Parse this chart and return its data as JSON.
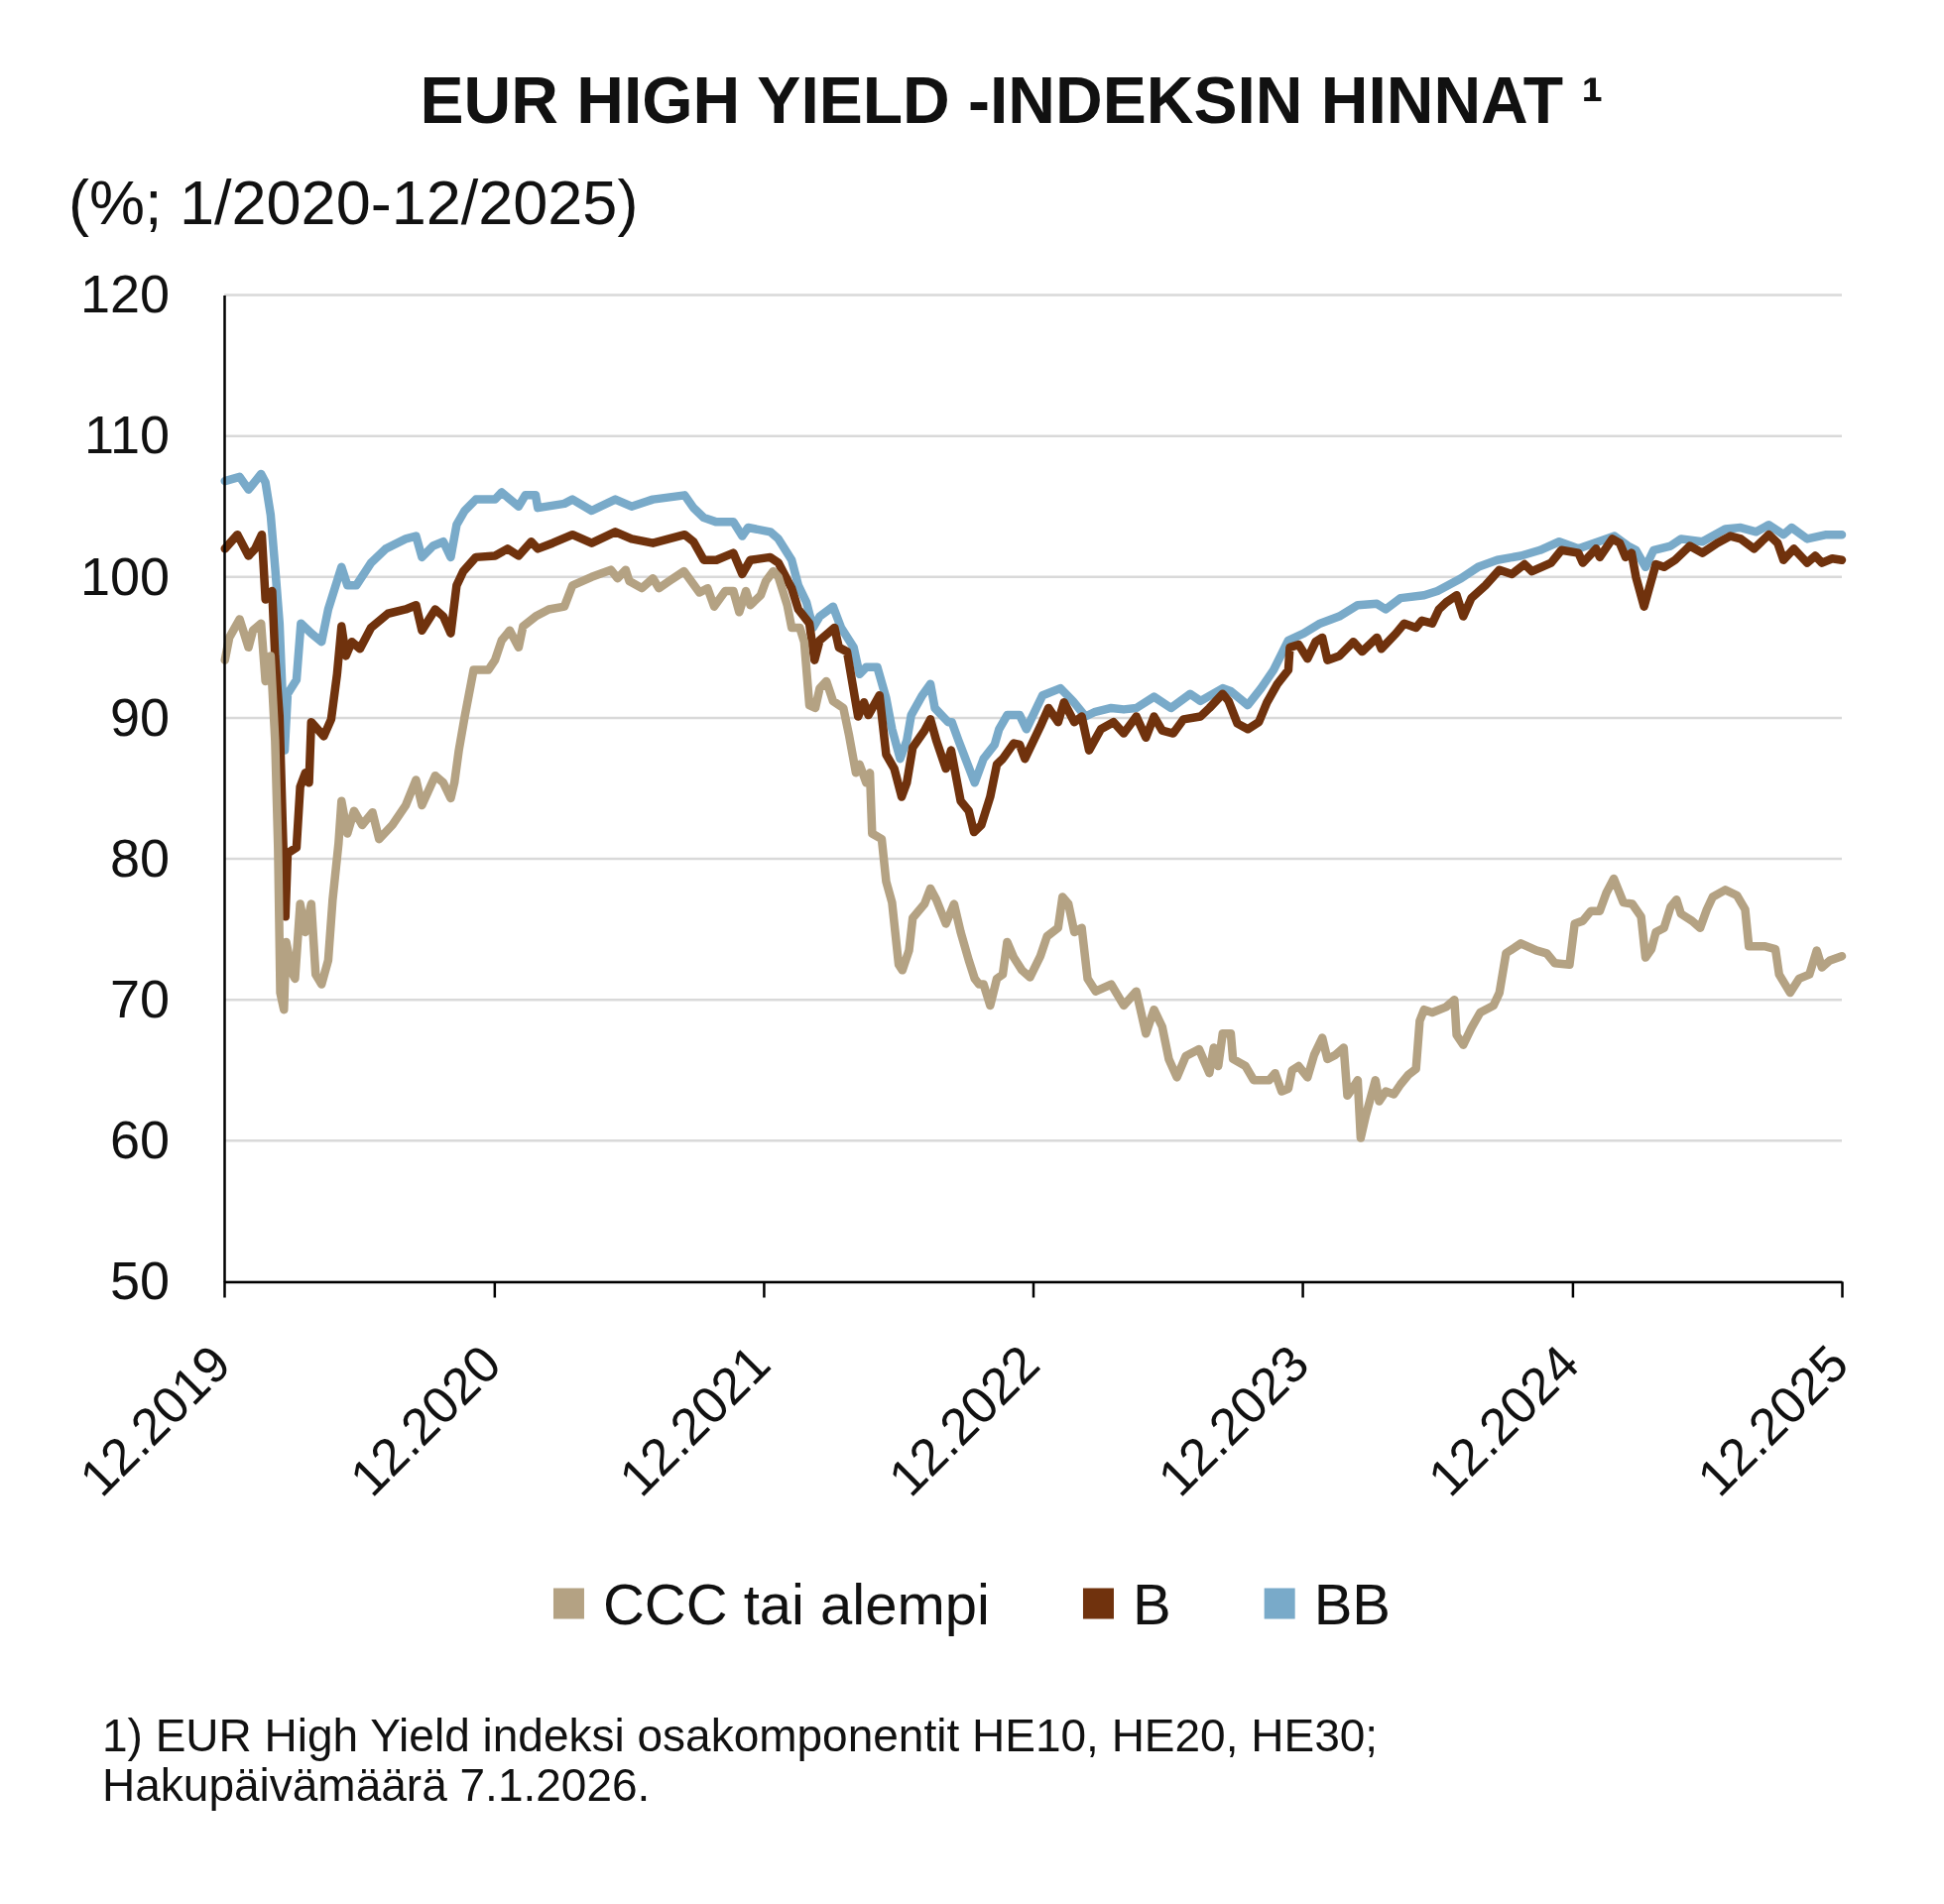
{
  "chart_data": {
    "type": "line",
    "title": "EUR HIGH YIELD -INDEKSIN HINNAT ¹",
    "subtitle": "(%; 1/2020-12/2025)",
    "annotations": [
      "1) EUR High Yield indeksi osakomponentit HE10, HE20, HE30;",
      "Hakupäivämäärä 7.1.2026."
    ],
    "xlim": [
      "2019-12-31",
      "2025-12-31"
    ],
    "xticks": [
      {
        "value": "2019-12-31",
        "label": "12.2019"
      },
      {
        "value": "2020-12-31",
        "label": "12.2020"
      },
      {
        "value": "2021-12-31",
        "label": "12.2021"
      },
      {
        "value": "2022-12-31",
        "label": "12.2022"
      },
      {
        "value": "2023-12-31",
        "label": "12.2023"
      },
      {
        "value": "2024-12-31",
        "label": "12.2024"
      },
      {
        "value": "2025-12-31",
        "label": "12.2025"
      }
    ],
    "ylim": [
      50,
      120
    ],
    "yticks": [
      50,
      60,
      70,
      80,
      90,
      100,
      110,
      120
    ],
    "grid": "y",
    "legend": "bottom",
    "series": [
      {
        "name": "CCC tai alempi",
        "color": "#b4a283",
        "x": [
          "2020-01-01",
          "2020-01-07",
          "2020-01-21",
          "2020-02-02",
          "2020-02-08",
          "2020-02-19",
          "2020-02-25",
          "2020-03-03",
          "2020-03-09",
          "2020-03-13",
          "2020-03-16",
          "2020-03-21",
          "2020-03-24",
          "2020-04-02",
          "2020-04-05",
          "2020-04-12",
          "2020-04-19",
          "2020-04-27",
          "2020-05-03",
          "2020-05-11",
          "2020-05-20",
          "2020-05-26",
          "2020-06-03",
          "2020-06-07",
          "2020-06-15",
          "2020-06-24",
          "2020-07-05",
          "2020-07-19",
          "2020-07-28",
          "2020-08-15",
          "2020-09-02",
          "2020-09-16",
          "2020-09-24",
          "2020-10-12",
          "2020-10-23",
          "2020-11-02",
          "2020-11-07",
          "2020-11-13",
          "2020-11-21",
          "2020-12-03",
          "2020-12-23",
          "2021-01-01",
          "2021-01-10",
          "2021-01-21",
          "2021-02-02",
          "2021-02-08",
          "2021-02-25",
          "2021-03-15",
          "2021-04-05",
          "2021-04-16",
          "2021-05-12",
          "2021-06-07",
          "2021-06-16",
          "2021-06-27",
          "2021-07-02",
          "2021-07-19",
          "2021-08-03",
          "2021-08-11",
          "2021-08-25",
          "2021-09-14",
          "2021-10-05",
          "2021-10-16",
          "2021-10-25",
          "2021-11-09",
          "2021-11-20",
          "2021-11-28",
          "2021-12-07",
          "2021-12-13",
          "2021-12-27",
          "2022-01-03",
          "2022-01-13",
          "2022-01-20",
          "2022-02-01",
          "2022-02-07",
          "2022-02-18",
          "2022-02-24",
          "2022-03-03",
          "2022-03-11",
          "2022-03-17",
          "2022-03-26",
          "2022-04-04",
          "2022-04-18",
          "2022-04-26",
          "2022-05-05",
          "2022-05-10",
          "2022-05-19",
          "2022-05-24",
          "2022-05-27",
          "2022-06-09",
          "2022-06-15",
          "2022-06-23",
          "2022-07-02",
          "2022-07-07",
          "2022-07-16",
          "2022-07-21",
          "2022-08-06",
          "2022-08-14",
          "2022-08-22",
          "2022-09-04",
          "2022-09-15",
          "2022-09-24",
          "2022-10-05",
          "2022-10-13",
          "2022-10-19",
          "2022-10-25",
          "2022-11-03",
          "2022-11-12",
          "2022-11-20",
          "2022-11-26",
          "2022-12-05",
          "2022-12-16",
          "2022-12-27",
          "2023-01-10",
          "2023-01-19",
          "2023-02-03",
          "2023-02-09",
          "2023-02-17",
          "2023-02-25",
          "2023-03-07",
          "2023-03-15",
          "2023-03-26",
          "2023-04-16",
          "2023-05-03",
          "2023-05-20",
          "2023-06-02",
          "2023-06-13",
          "2023-06-24",
          "2023-07-03",
          "2023-07-14",
          "2023-07-26",
          "2023-08-13",
          "2023-08-27",
          "2023-09-02",
          "2023-09-08",
          "2023-09-14",
          "2023-09-25",
          "2023-09-28",
          "2023-10-15",
          "2023-10-26",
          "2023-11-16",
          "2023-11-24",
          "2023-12-03",
          "2023-12-12",
          "2023-12-17",
          "2023-12-26",
          "2024-01-07",
          "2024-01-16",
          "2024-01-27",
          "2024-02-03",
          "2024-02-14",
          "2024-02-25",
          "2024-03-01",
          "2024-03-09",
          "2024-03-15",
          "2024-03-19",
          "2024-03-26",
          "2024-04-08",
          "2024-04-13",
          "2024-04-22",
          "2024-05-03",
          "2024-05-12",
          "2024-05-23",
          "2024-06-02",
          "2024-06-07",
          "2024-06-13",
          "2024-06-24",
          "2024-07-13",
          "2024-07-24",
          "2024-07-27",
          "2024-08-05",
          "2024-08-16",
          "2024-08-28",
          "2024-09-15",
          "2024-09-23",
          "2024-10-02",
          "2024-10-22",
          "2024-11-12",
          "2024-11-26",
          "2024-12-07",
          "2024-12-27",
          "2025-01-03",
          "2025-01-14",
          "2025-01-25",
          "2025-02-06",
          "2025-02-15",
          "2025-02-25",
          "2025-03-10",
          "2025-03-22",
          "2025-04-03",
          "2025-04-09",
          "2025-04-17",
          "2025-04-23",
          "2025-05-04",
          "2025-05-13",
          "2025-05-21",
          "2025-05-27",
          "2025-06-11",
          "2025-06-22",
          "2025-07-01",
          "2025-07-09",
          "2025-07-26",
          "2025-08-11",
          "2025-08-22",
          "2025-08-27",
          "2025-09-17",
          "2025-10-02",
          "2025-10-07",
          "2025-10-22",
          "2025-11-03",
          "2025-11-17",
          "2025-11-27",
          "2025-12-04",
          "2025-12-15",
          "2025-12-31"
        ],
        "values": [
          94.1,
          95.7,
          97.0,
          95.0,
          96.2,
          96.7,
          92.6,
          94.4,
          88.4,
          80.8,
          70.5,
          69.3,
          74.1,
          71.8,
          71.5,
          76.8,
          74.8,
          76.8,
          71.8,
          71.1,
          72.8,
          77.1,
          81.1,
          84.1,
          81.8,
          83.4,
          82.4,
          83.3,
          81.4,
          82.4,
          83.8,
          85.6,
          83.8,
          85.9,
          85.4,
          84.3,
          85.4,
          87.7,
          90.1,
          93.4,
          93.4,
          94.1,
          95.5,
          96.2,
          95.0,
          96.5,
          97.2,
          97.7,
          97.9,
          99.4,
          100.0,
          100.5,
          99.9,
          100.5,
          99.7,
          99.2,
          99.9,
          99.2,
          99.7,
          100.4,
          98.9,
          99.2,
          97.9,
          99.0,
          99.0,
          97.5,
          99.0,
          98.0,
          98.7,
          99.7,
          100.4,
          100.0,
          98.0,
          96.4,
          96.4,
          95.4,
          90.9,
          90.7,
          92.1,
          92.6,
          91.2,
          90.7,
          88.7,
          86.1,
          86.7,
          85.4,
          86.1,
          81.8,
          81.4,
          78.4,
          76.9,
          72.5,
          72.1,
          73.5,
          75.8,
          76.8,
          77.9,
          77.1,
          75.4,
          76.8,
          74.8,
          72.8,
          71.5,
          71.1,
          71.1,
          69.6,
          71.5,
          71.8,
          74.1,
          73.0,
          72.1,
          71.6,
          73.1,
          74.5,
          75.1,
          77.3,
          76.8,
          74.8,
          75.1,
          71.5,
          70.6,
          71.1,
          69.6,
          70.6,
          67.6,
          69.3,
          68.1,
          65.8,
          64.5,
          66.0,
          66.5,
          64.8,
          66.6,
          65.3,
          67.6,
          67.6,
          65.8,
          65.3,
          64.3,
          64.3,
          64.8,
          63.5,
          63.7,
          65.0,
          65.3,
          64.5,
          66.1,
          67.3,
          65.8,
          66.1,
          66.6,
          63.2,
          63.8,
          64.3,
          60.2,
          61.8,
          64.3,
          62.8,
          63.5,
          63.3,
          64.0,
          64.7,
          65.1,
          68.5,
          69.3,
          69.1,
          69.5,
          70.0,
          67.5,
          66.8,
          68.0,
          69.1,
          69.6,
          70.5,
          73.3,
          74.0,
          73.5,
          73.3,
          72.6,
          72.5,
          75.4,
          75.6,
          76.3,
          76.3,
          77.6,
          78.6,
          76.9,
          76.8,
          75.9,
          73.0,
          73.6,
          74.8,
          75.1,
          76.6,
          77.1,
          76.1,
          75.6,
          75.1,
          76.4,
          77.3,
          77.8,
          77.4,
          76.4,
          73.8,
          73.8,
          73.6,
          71.8,
          70.5,
          71.5,
          71.8,
          73.5,
          72.3,
          72.8,
          73.1
        ]
      },
      {
        "name": "B",
        "color": "#70320d",
        "x": [
          "2020-01-01",
          "2020-01-18",
          "2020-02-02",
          "2020-02-11",
          "2020-02-20",
          "2020-02-25",
          "2020-03-05",
          "2020-03-09",
          "2020-03-15",
          "2020-03-19",
          "2020-03-23",
          "2020-03-26",
          "2020-04-07",
          "2020-04-12",
          "2020-04-19",
          "2020-04-24",
          "2020-04-27",
          "2020-05-14",
          "2020-05-24",
          "2020-06-01",
          "2020-06-07",
          "2020-06-13",
          "2020-06-21",
          "2020-07-02",
          "2020-07-17",
          "2020-08-09",
          "2020-09-02",
          "2020-09-16",
          "2020-09-24",
          "2020-10-12",
          "2020-10-23",
          "2020-11-02",
          "2020-11-10",
          "2020-11-19",
          "2020-12-06",
          "2021-01-01",
          "2021-01-18",
          "2021-02-02",
          "2021-02-19",
          "2021-02-28",
          "2021-03-20",
          "2021-04-16",
          "2021-05-12",
          "2021-06-13",
          "2021-07-05",
          "2021-08-03",
          "2021-09-15",
          "2021-09-27",
          "2021-10-11",
          "2021-10-28",
          "2021-11-20",
          "2021-12-02",
          "2021-12-13",
          "2022-01-09",
          "2022-01-20",
          "2022-02-07",
          "2022-02-16",
          "2022-03-03",
          "2022-03-10",
          "2022-03-17",
          "2022-04-06",
          "2022-04-12",
          "2022-04-23",
          "2022-05-08",
          "2022-05-16",
          "2022-05-22",
          "2022-06-06",
          "2022-06-15",
          "2022-06-26",
          "2022-07-06",
          "2022-07-13",
          "2022-07-21",
          "2022-08-06",
          "2022-08-14",
          "2022-08-22",
          "2022-09-04",
          "2022-09-11",
          "2022-09-24",
          "2022-10-05",
          "2022-10-12",
          "2022-10-22",
          "2022-11-03",
          "2022-11-12",
          "2022-11-20",
          "2022-12-05",
          "2022-12-13",
          "2022-12-20",
          "2023-01-10",
          "2023-01-21",
          "2023-02-03",
          "2023-02-11",
          "2023-02-25",
          "2023-03-07",
          "2023-03-17",
          "2023-04-02",
          "2023-04-19",
          "2023-05-03",
          "2023-05-20",
          "2023-06-02",
          "2023-06-13",
          "2023-06-24",
          "2023-07-09",
          "2023-07-23",
          "2023-08-15",
          "2023-08-27",
          "2023-09-14",
          "2023-09-22",
          "2023-10-04",
          "2023-10-18",
          "2023-11-02",
          "2023-11-13",
          "2023-11-27",
          "2023-12-12",
          "2023-12-14",
          "2023-12-26",
          "2024-01-07",
          "2024-01-18",
          "2024-01-27",
          "2024-02-03",
          "2024-02-19",
          "2024-03-09",
          "2024-03-21",
          "2024-04-10",
          "2024-04-16",
          "2024-05-06",
          "2024-05-17",
          "2024-06-02",
          "2024-06-10",
          "2024-06-24",
          "2024-07-03",
          "2024-07-13",
          "2024-07-27",
          "2024-08-05",
          "2024-08-16",
          "2024-09-04",
          "2024-09-23",
          "2024-10-10",
          "2024-10-27",
          "2024-11-06",
          "2024-12-02",
          "2024-12-16",
          "2025-01-08",
          "2025-01-14",
          "2025-02-01",
          "2025-02-06",
          "2025-02-23",
          "2025-03-05",
          "2025-03-13",
          "2025-03-21",
          "2025-03-27",
          "2025-04-07",
          "2025-04-15",
          "2025-04-23",
          "2025-05-04",
          "2025-05-19",
          "2025-06-08",
          "2025-06-25",
          "2025-07-15",
          "2025-08-02",
          "2025-08-16",
          "2025-09-03",
          "2025-09-23",
          "2025-10-05",
          "2025-10-13",
          "2025-10-27",
          "2025-11-14",
          "2025-11-25",
          "2025-12-04",
          "2025-12-18",
          "2025-12-31"
        ],
        "values": [
          102.0,
          103.0,
          101.5,
          102.0,
          103.0,
          98.4,
          99.0,
          94.4,
          90.1,
          82.8,
          75.9,
          80.4,
          80.8,
          85.1,
          86.1,
          85.4,
          89.7,
          88.7,
          89.9,
          93.1,
          96.5,
          94.4,
          95.4,
          94.9,
          96.4,
          97.4,
          97.7,
          98.0,
          96.2,
          97.7,
          97.2,
          96.0,
          99.4,
          100.4,
          101.4,
          101.5,
          102.0,
          101.5,
          102.5,
          102.0,
          102.4,
          103.0,
          102.4,
          103.2,
          102.7,
          102.4,
          103.0,
          102.5,
          101.2,
          101.2,
          101.7,
          100.2,
          101.2,
          101.4,
          101.0,
          99.2,
          97.7,
          96.7,
          94.1,
          95.5,
          96.4,
          95.0,
          94.7,
          90.1,
          91.1,
          90.2,
          91.6,
          87.4,
          86.4,
          84.4,
          85.4,
          87.9,
          89.1,
          89.9,
          88.4,
          86.4,
          87.7,
          84.1,
          83.4,
          81.9,
          82.4,
          84.4,
          86.7,
          87.1,
          88.2,
          88.1,
          87.1,
          89.4,
          90.7,
          89.7,
          91.1,
          89.7,
          90.1,
          87.7,
          89.2,
          89.7,
          88.9,
          90.1,
          88.6,
          90.1,
          89.1,
          88.9,
          89.9,
          90.1,
          90.7,
          91.7,
          91.2,
          89.6,
          89.2,
          89.7,
          91.1,
          92.4,
          93.4,
          95.0,
          95.2,
          94.2,
          95.4,
          95.7,
          94.1,
          94.4,
          95.4,
          94.7,
          95.7,
          94.9,
          96.0,
          96.7,
          96.4,
          96.9,
          96.7,
          97.7,
          98.2,
          98.7,
          97.2,
          98.5,
          99.4,
          100.5,
          100.2,
          100.9,
          100.4,
          101.0,
          101.9,
          101.7,
          101.0,
          102.0,
          101.4,
          102.7,
          102.4,
          101.4,
          101.7,
          100.0,
          97.9,
          99.4,
          100.9,
          100.7,
          101.2,
          102.2,
          101.7,
          102.4,
          102.9,
          102.7,
          102.0,
          103.0,
          102.4,
          101.2,
          102.0,
          101.0,
          101.5,
          101.0,
          101.3,
          101.2
        ]
      },
      {
        "name": "BB",
        "color": "#79aac9",
        "x": [
          "2020-01-01",
          "2020-01-21",
          "2020-02-02",
          "2020-02-19",
          "2020-02-25",
          "2020-03-03",
          "2020-03-09",
          "2020-03-15",
          "2020-03-22",
          "2020-03-26",
          "2020-04-07",
          "2020-04-13",
          "2020-04-27",
          "2020-05-11",
          "2020-05-20",
          "2020-06-07",
          "2020-06-15",
          "2020-06-27",
          "2020-07-17",
          "2020-08-06",
          "2020-09-02",
          "2020-09-16",
          "2020-09-24",
          "2020-10-09",
          "2020-10-23",
          "2020-11-02",
          "2020-11-10",
          "2020-11-21",
          "2020-12-06",
          "2021-01-01",
          "2021-01-10",
          "2021-02-02",
          "2021-02-11",
          "2021-02-25",
          "2021-02-28",
          "2021-04-05",
          "2021-04-16",
          "2021-05-12",
          "2021-06-13",
          "2021-07-05",
          "2021-08-03",
          "2021-09-15",
          "2021-09-27",
          "2021-10-11",
          "2021-10-28",
          "2021-11-20",
          "2021-12-02",
          "2021-12-10",
          "2022-01-09",
          "2022-01-20",
          "2022-02-07",
          "2022-02-16",
          "2022-02-27",
          "2022-03-08",
          "2022-03-17",
          "2022-04-04",
          "2022-04-15",
          "2022-05-02",
          "2022-05-10",
          "2022-05-19",
          "2022-06-03",
          "2022-06-15",
          "2022-06-23",
          "2022-07-04",
          "2022-07-13",
          "2022-07-19",
          "2022-08-03",
          "2022-08-14",
          "2022-08-20",
          "2022-09-07",
          "2022-09-12",
          "2022-09-21",
          "2022-10-02",
          "2022-10-13",
          "2022-10-25",
          "2022-11-09",
          "2022-11-15",
          "2022-11-26",
          "2022-12-13",
          "2022-12-22",
          "2023-01-13",
          "2023-02-06",
          "2023-02-23",
          "2023-03-12",
          "2023-03-24",
          "2023-04-16",
          "2023-05-03",
          "2023-05-20",
          "2023-06-13",
          "2023-07-06",
          "2023-08-01",
          "2023-08-15",
          "2023-09-14",
          "2023-09-25",
          "2023-10-18",
          "2023-11-05",
          "2023-11-22",
          "2023-12-12",
          "2024-01-02",
          "2024-01-24",
          "2024-02-19",
          "2024-03-15",
          "2024-04-10",
          "2024-04-22",
          "2024-05-12",
          "2024-06-13",
          "2024-07-01",
          "2024-08-02",
          "2024-08-25",
          "2024-09-20",
          "2024-10-22",
          "2024-11-17",
          "2024-12-13",
          "2025-01-08",
          "2025-02-04",
          "2025-02-26",
          "2025-03-16",
          "2025-03-27",
          "2025-04-09",
          "2025-04-20",
          "2025-05-13",
          "2025-05-27",
          "2025-06-25",
          "2025-07-26",
          "2025-08-16",
          "2025-09-06",
          "2025-09-23",
          "2025-10-13",
          "2025-10-24",
          "2025-11-14",
          "2025-12-10",
          "2025-12-31"
        ],
        "values": [
          106.8,
          107.1,
          106.2,
          107.3,
          106.7,
          104.4,
          100.7,
          96.7,
          87.7,
          91.7,
          92.7,
          96.7,
          96.0,
          95.4,
          97.7,
          100.7,
          99.4,
          99.4,
          101.0,
          102.0,
          102.7,
          102.9,
          101.4,
          102.2,
          102.5,
          101.4,
          103.7,
          104.7,
          105.5,
          105.5,
          106.0,
          105.0,
          105.8,
          105.8,
          104.9,
          105.2,
          105.5,
          104.7,
          105.5,
          105.0,
          105.5,
          105.8,
          104.9,
          104.2,
          103.9,
          103.9,
          102.9,
          103.5,
          103.2,
          102.7,
          101.2,
          99.4,
          98.2,
          96.4,
          97.2,
          97.9,
          96.4,
          95.0,
          93.1,
          93.6,
          93.6,
          91.4,
          89.2,
          87.1,
          88.4,
          90.2,
          91.6,
          92.4,
          90.7,
          89.7,
          89.7,
          88.4,
          86.9,
          85.4,
          87.1,
          88.1,
          89.2,
          90.2,
          90.2,
          89.2,
          91.6,
          92.1,
          91.2,
          90.1,
          90.4,
          90.7,
          90.6,
          90.7,
          91.5,
          90.7,
          91.7,
          91.2,
          92.1,
          91.9,
          90.9,
          92.1,
          93.4,
          95.5,
          96.0,
          96.7,
          97.2,
          98.0,
          98.1,
          97.7,
          98.5,
          98.7,
          99.0,
          99.9,
          100.7,
          101.2,
          101.5,
          101.9,
          102.5,
          102.0,
          102.5,
          102.9,
          102.2,
          101.9,
          100.7,
          101.9,
          102.2,
          102.7,
          102.5,
          103.4,
          103.5,
          103.2,
          103.7,
          103.0,
          103.5,
          102.7,
          103.0,
          103.0
        ]
      }
    ]
  }
}
